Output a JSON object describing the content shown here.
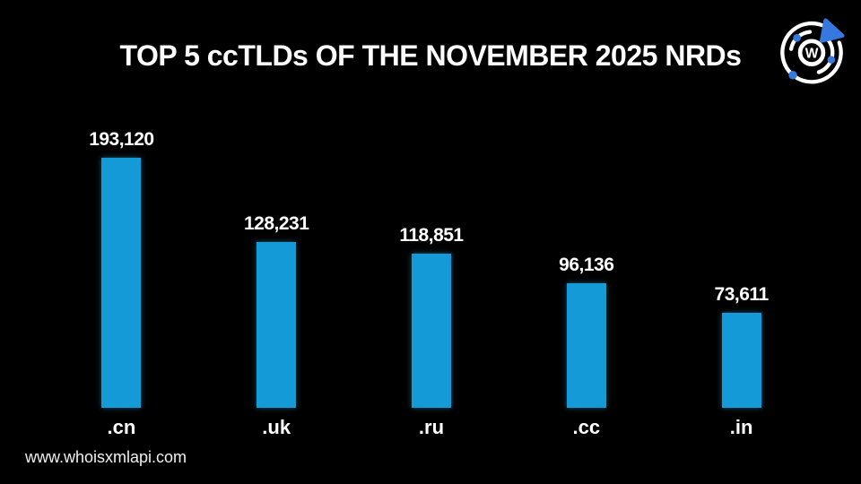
{
  "title": "TOP 5 ccTLDs OF THE NOVEMBER 2025 NRDs",
  "footer": {
    "website": "www.whoisxmlapi.com"
  },
  "logo": {
    "letter": "W",
    "accent_blue": "#3578e0",
    "ring_white": "#ffffff"
  },
  "chart_data": {
    "type": "bar",
    "title": "TOP 5 ccTLDs OF THE NOVEMBER 2025 NRDs",
    "categories": [
      ".cn",
      ".uk",
      ".ru",
      ".cc",
      ".in"
    ],
    "values": [
      193120,
      128231,
      118851,
      96136,
      73611
    ],
    "value_labels": [
      "193,120",
      "128,231",
      "118,851",
      "96,136",
      "73,611"
    ],
    "bar_color": "#149ad6",
    "background": "#000000",
    "xlabel": "",
    "ylabel": "",
    "ylim": [
      0,
      200000
    ],
    "gridlines": false,
    "legend": false
  }
}
